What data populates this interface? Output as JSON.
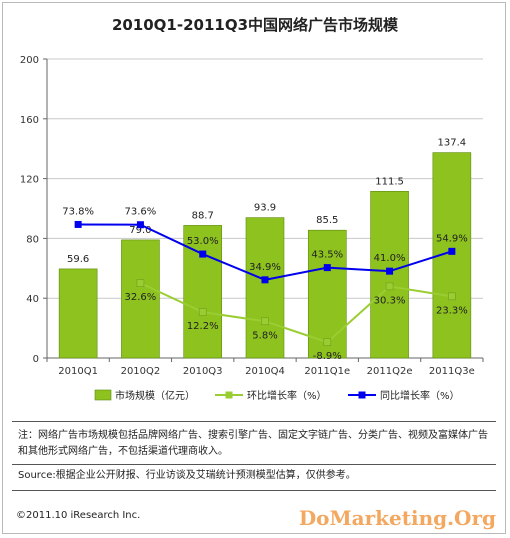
{
  "chart_data": {
    "type": "bar",
    "title": "2010Q1-2011Q3中国网络广告市场规模",
    "categories": [
      "2010Q1",
      "2010Q2",
      "2010Q3",
      "2010Q4",
      "2011Q1e",
      "2011Q2e",
      "2011Q3e"
    ],
    "ylim": [
      0,
      200
    ],
    "yticks": [
      0,
      40,
      80,
      120,
      160,
      200
    ],
    "grid": true,
    "legend_position": "bottom",
    "series": [
      {
        "name": "市场规模（亿元）",
        "type": "bar",
        "color": "#8dc21f",
        "values": [
          59.6,
          79.0,
          88.7,
          93.9,
          85.5,
          111.5,
          137.4
        ],
        "labels": [
          "59.6",
          "79.0",
          "88.7",
          "93.9",
          "85.5",
          "111.5",
          "137.4"
        ]
      },
      {
        "name": "环比增长率（%）",
        "type": "line",
        "color": "#9acd32",
        "values": [
          null,
          32.6,
          12.2,
          5.8,
          -8.9,
          30.3,
          23.3
        ],
        "labels": [
          "",
          "32.6%",
          "12.2%",
          "5.8%",
          "-8.9%",
          "30.3%",
          "23.3%"
        ]
      },
      {
        "name": "同比增长率（%）",
        "type": "line",
        "color": "#0000ee",
        "values": [
          73.8,
          73.6,
          53.0,
          34.9,
          43.5,
          41.0,
          54.9
        ],
        "labels": [
          "73.8%",
          "73.6%",
          "53.0%",
          "34.9%",
          "43.5%",
          "41.0%",
          "54.9%"
        ]
      }
    ]
  },
  "notes": {
    "note": "注：网络广告市场规模包括品牌网络广告、搜索引擎广告、固定文字链广告、分类广告、视频及富媒体广告和其他形式网络广告，不包括渠道代理商收入。",
    "source": "Source:根据企业公开财报、行业访谈及艾瑞统计预测模型估算，仅供参考。",
    "copyright": "©2011.10 iResearch Inc.",
    "watermark": "DoMarketing.Org"
  }
}
